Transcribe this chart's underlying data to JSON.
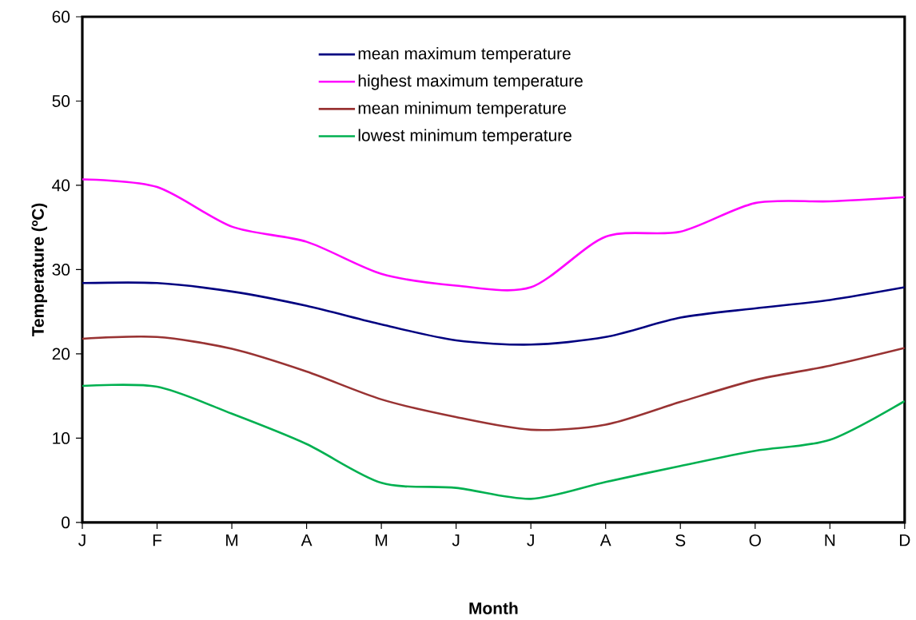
{
  "chart_data": {
    "type": "line",
    "xlabel": "Month",
    "ylabel": "Temperature (ºC)",
    "categories": [
      "J",
      "F",
      "M",
      "A",
      "M",
      "J",
      "J",
      "A",
      "S",
      "O",
      "N",
      "D"
    ],
    "ylim": [
      0,
      60
    ],
    "yticks": [
      0,
      10,
      20,
      30,
      40,
      50,
      60
    ],
    "legend": "top",
    "marker": "none",
    "line_style": "solid",
    "series": [
      {
        "name": "mean maximum temperature",
        "color": "#000080",
        "values": [
          28.4,
          28.4,
          27.4,
          25.7,
          23.5,
          21.6,
          21.1,
          22.0,
          24.3,
          25.4,
          26.4,
          27.9
        ]
      },
      {
        "name": "highest maximum temperature",
        "color": "#ff00ff",
        "values": [
          40.7,
          39.8,
          35.1,
          33.3,
          29.5,
          28.1,
          27.9,
          33.9,
          34.5,
          37.9,
          38.1,
          38.6
        ]
      },
      {
        "name": "mean minimum temperature",
        "color": "#993333",
        "values": [
          21.8,
          22.0,
          20.6,
          17.9,
          14.6,
          12.5,
          11.0,
          11.6,
          14.3,
          16.9,
          18.6,
          20.7
        ]
      },
      {
        "name": "lowest minimum temperature",
        "color": "#00b050",
        "values": [
          16.2,
          16.1,
          12.9,
          9.3,
          4.7,
          4.1,
          2.8,
          4.8,
          6.7,
          8.5,
          9.8,
          14.4
        ]
      }
    ]
  }
}
